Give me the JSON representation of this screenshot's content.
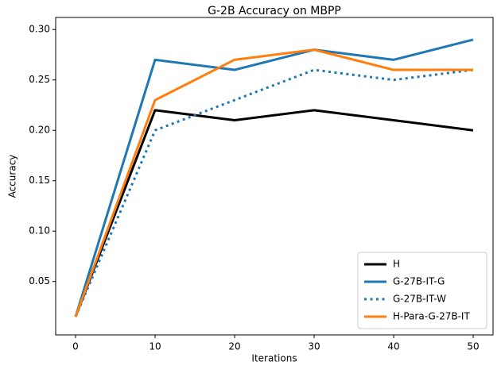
{
  "chart_data": {
    "type": "line",
    "title": "G-2B Accuracy on MBPP",
    "x_label": "Iterations",
    "y_label": "Accuracy",
    "x": [
      0,
      10,
      20,
      30,
      40,
      50
    ],
    "series": [
      {
        "name": "H",
        "color": "#000000",
        "linestyle": "solid",
        "values": [
          0.015,
          0.22,
          0.21,
          0.22,
          0.21,
          0.2
        ]
      },
      {
        "name": "G-27B-IT-G",
        "color": "#1f77b4",
        "linestyle": "solid",
        "values": [
          0.015,
          0.27,
          0.26,
          0.28,
          0.27,
          0.29
        ]
      },
      {
        "name": "G-27B-IT-W",
        "color": "#1f77b4",
        "linestyle": "dotted",
        "values": [
          0.015,
          0.2,
          0.23,
          0.26,
          0.25,
          0.26
        ]
      },
      {
        "name": "H-Para-G-27B-IT",
        "color": "#ff7f0e",
        "linestyle": "solid",
        "values": [
          0.015,
          0.23,
          0.27,
          0.28,
          0.26,
          0.26
        ]
      }
    ],
    "xlim": [
      -2.5,
      52.5
    ],
    "xticks": [
      0,
      10,
      20,
      30,
      40,
      50
    ],
    "ylim": [
      -0.003,
      0.312
    ],
    "yticks": [
      {
        "value": 0.05,
        "label": "0.05"
      },
      {
        "value": 0.1,
        "label": "0.10"
      },
      {
        "value": 0.15,
        "label": "0.15"
      },
      {
        "value": 0.2,
        "label": "0.20"
      },
      {
        "value": 0.25,
        "label": "0.25"
      },
      {
        "value": 0.3,
        "label": "0.30"
      }
    ],
    "grid": false,
    "legend": "lower right"
  }
}
